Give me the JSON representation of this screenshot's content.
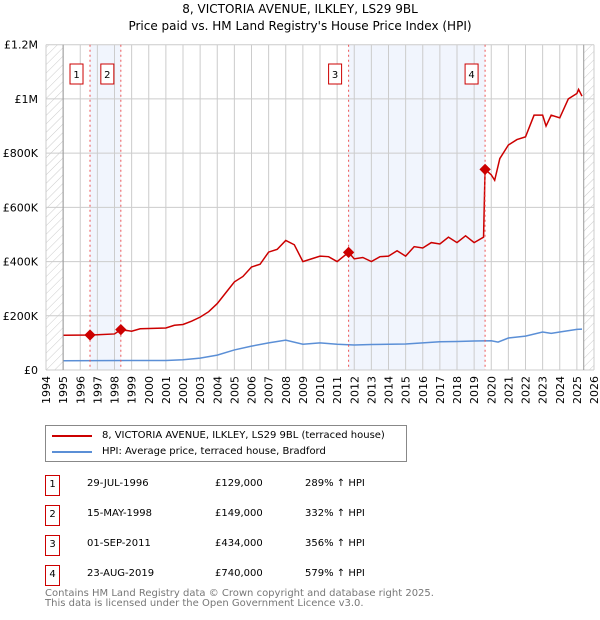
{
  "chart_data": {
    "type": "line",
    "title": "8, VICTORIA AVENUE, ILKLEY, LS29 9BL",
    "subtitle": "Price paid vs. HM Land Registry's House Price Index (HPI)",
    "xlim": [
      1994,
      2026
    ],
    "ylim": [
      0,
      1200000
    ],
    "x_ticks": [
      "1994",
      "1995",
      "1996",
      "1997",
      "1998",
      "1999",
      "2000",
      "2001",
      "2002",
      "2003",
      "2004",
      "2005",
      "2006",
      "2007",
      "2008",
      "2009",
      "2010",
      "2011",
      "2012",
      "2013",
      "2014",
      "2015",
      "2016",
      "2017",
      "2018",
      "2019",
      "2020",
      "2021",
      "2022",
      "2023",
      "2024",
      "2025",
      "2026"
    ],
    "y_ticks": [
      {
        "v": 0,
        "label": "£0"
      },
      {
        "v": 200000,
        "label": "£200K"
      },
      {
        "v": 400000,
        "label": "£400K"
      },
      {
        "v": 600000,
        "label": "£600K"
      },
      {
        "v": 800000,
        "label": "£800K"
      },
      {
        "v": 1000000,
        "label": "£1M"
      },
      {
        "v": 1200000,
        "label": "£1.2M"
      }
    ],
    "grid": true,
    "series": [
      {
        "name": "8, VICTORIA AVENUE, ILKLEY, LS29 9BL (terraced house)",
        "color": "#cc0000",
        "x": [
          1995,
          1996.6,
          1997,
          1998,
          1998.37,
          1999,
          1999.5,
          2000,
          2001,
          2001.5,
          2002,
          2002.5,
          2003,
          2003.5,
          2004,
          2004.5,
          2005,
          2005.5,
          2006,
          2006.5,
          2007,
          2007.5,
          2008,
          2008.5,
          2009,
          2009.5,
          2010,
          2010.5,
          2011,
          2011.67,
          2012,
          2012.5,
          2013,
          2013.5,
          2014,
          2014.5,
          2015,
          2015.5,
          2016,
          2016.5,
          2017,
          2017.5,
          2018,
          2018.5,
          2019,
          2019.55,
          2019.64,
          2020,
          2020.2,
          2020.5,
          2021,
          2021.5,
          2022,
          2022.5,
          2023,
          2023.2,
          2023.5,
          2024,
          2024.5,
          2025,
          2025.1,
          2025.3
        ],
        "y": [
          128000,
          129000,
          130000,
          133000,
          149000,
          143000,
          152000,
          153000,
          155000,
          165000,
          168000,
          180000,
          195000,
          215000,
          245000,
          285000,
          325000,
          345000,
          380000,
          390000,
          435000,
          445000,
          478000,
          462000,
          400000,
          410000,
          420000,
          418000,
          400000,
          434000,
          410000,
          415000,
          400000,
          418000,
          420000,
          440000,
          420000,
          455000,
          450000,
          470000,
          465000,
          490000,
          470000,
          495000,
          470000,
          490000,
          740000,
          720000,
          700000,
          780000,
          830000,
          850000,
          860000,
          940000,
          940000,
          900000,
          940000,
          930000,
          1000000,
          1020000,
          1035000,
          1010000
        ]
      },
      {
        "name": "HPI: Average price, terraced house, Bradford",
        "color": "#5b8fd6",
        "x": [
          1995,
          1999,
          2001,
          2002,
          2003,
          2004,
          2005,
          2006,
          2007,
          2008,
          2009,
          2010,
          2011,
          2012,
          2013,
          2014,
          2015,
          2016,
          2017,
          2018,
          2019,
          2020,
          2020.4,
          2021,
          2022,
          2023,
          2023.5,
          2024,
          2025,
          2025.3
        ],
        "y": [
          34000,
          35000,
          35000,
          38000,
          44000,
          55000,
          74000,
          88000,
          100000,
          110000,
          95000,
          100000,
          95000,
          92000,
          94000,
          95000,
          96000,
          100000,
          104000,
          105000,
          107000,
          108000,
          103000,
          118000,
          125000,
          140000,
          135000,
          140000,
          150000,
          151000
        ]
      }
    ],
    "sales": [
      {
        "label": "1",
        "x": 1996.57,
        "price": 129000,
        "date": "29-JUL-1996",
        "price_text": "£129,000",
        "hpi_text": "289% ↑ HPI"
      },
      {
        "label": "2",
        "x": 1998.37,
        "price": 149000,
        "date": "15-MAY-1998",
        "price_text": "£149,000",
        "hpi_text": "332% ↑ HPI"
      },
      {
        "label": "3",
        "x": 2011.67,
        "price": 434000,
        "date": "01-SEP-2011",
        "price_text": "£434,000",
        "hpi_text": "356% ↑ HPI"
      },
      {
        "label": "4",
        "x": 2019.64,
        "price": 740000,
        "date": "23-AUG-2019",
        "price_text": "£740,000",
        "hpi_text": "579% ↑ HPI"
      }
    ],
    "shaded_ranges": [
      [
        1996.57,
        1998.37
      ],
      [
        2011.67,
        2019.64
      ]
    ],
    "hatched_ranges": [
      [
        1994,
        1995
      ],
      [
        2025.4,
        2026
      ]
    ],
    "legend_placement": "bottom"
  },
  "footer": {
    "line1": "Contains HM Land Registry data © Crown copyright and database right 2025.",
    "line2": "This data is licensed under the Open Government Licence v3.0."
  }
}
